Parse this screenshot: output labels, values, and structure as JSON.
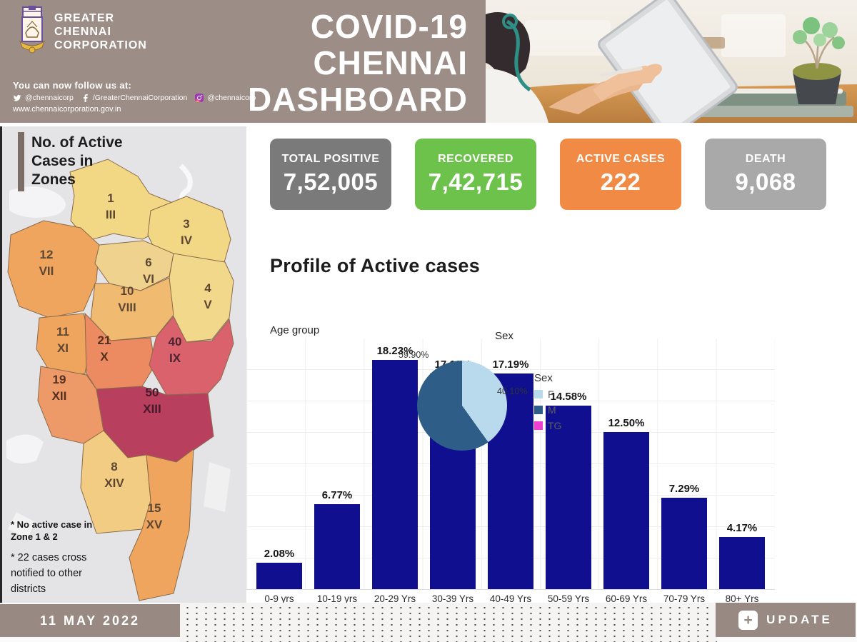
{
  "header": {
    "org_lines": [
      "GREATER",
      "CHENNAI",
      "CORPORATION"
    ],
    "follow_line": "You can now follow us at:",
    "socials": [
      {
        "icon": "twitter-icon",
        "handle": "@chennaicorp"
      },
      {
        "icon": "facebook-icon",
        "handle": "/GreaterChennaiCorporation"
      },
      {
        "icon": "instagram-icon",
        "handle": "@chennaicorp"
      }
    ],
    "website": "www.chennaicorporation.gov.in",
    "title_lines": [
      "COVID-19",
      "CHENNAI",
      "DASHBOARD"
    ]
  },
  "stats": [
    {
      "id": "total-positive",
      "label": "TOTAL POSITIVE",
      "value": "7,52,005",
      "color": "#7a7a7a"
    },
    {
      "id": "recovered",
      "label": "RECOVERED",
      "value": "7,42,715",
      "color": "#6cc24a"
    },
    {
      "id": "active-cases",
      "label": "ACTIVE CASES",
      "value": "222",
      "color": "#f08a44"
    },
    {
      "id": "death",
      "label": "DEATH",
      "value": "9,068",
      "color": "#a9a9a9"
    }
  ],
  "map": {
    "title_lines": [
      "No. of Active",
      "Cases in",
      "Zones"
    ],
    "zones": [
      {
        "id": "III",
        "cases": "1",
        "color": "#f2d784",
        "label_color": "#5d4733"
      },
      {
        "id": "IV",
        "cases": "3",
        "color": "#f2d784",
        "label_color": "#5d4733"
      },
      {
        "id": "VII",
        "cases": "12",
        "color": "#efa55e",
        "label_color": "#5d4733"
      },
      {
        "id": "VI",
        "cases": "6",
        "color": "#eed28d",
        "label_color": "#5d4733"
      },
      {
        "id": "V",
        "cases": "4",
        "color": "#f2d88b",
        "label_color": "#5d4733"
      },
      {
        "id": "VIII",
        "cases": "10",
        "color": "#f0ba70",
        "label_color": "#5d4733"
      },
      {
        "id": "XI",
        "cases": "11",
        "color": "#efa55e",
        "label_color": "#5d4733"
      },
      {
        "id": "X",
        "cases": "21",
        "color": "#ec8a62",
        "label_color": "#53301f"
      },
      {
        "id": "IX",
        "cases": "40",
        "color": "#d9626d",
        "label_color": "#4c2330"
      },
      {
        "id": "XII",
        "cases": "19",
        "color": "#ee9a68",
        "label_color": "#53301f"
      },
      {
        "id": "XIII",
        "cases": "50",
        "color": "#b83f5e",
        "label_color": "#43192b"
      },
      {
        "id": "XIV",
        "cases": "8",
        "color": "#f2cc82",
        "label_color": "#5d4733"
      },
      {
        "id": "XV",
        "cases": "15",
        "color": "#efa55e",
        "label_color": "#5d4733"
      }
    ],
    "notes": {
      "note1_lines": [
        "* No active case in",
        "Zone 1 & 2"
      ],
      "note2_lines": [
        "* 22  cases cross",
        "notified to other",
        "districts"
      ]
    }
  },
  "profile": {
    "heading": "Profile of Active cases"
  },
  "chart_data": [
    {
      "type": "bar",
      "title": "Age group",
      "categories": [
        "0-9 yrs",
        "10-19 yrs",
        "20-29 Yrs",
        "30-39 Yrs",
        "40-49 Yrs",
        "50-59 Yrs",
        "60-69 Yrs",
        "70-79 Yrs",
        "80+ Yrs"
      ],
      "values": [
        2.08,
        6.77,
        18.23,
        17.19,
        17.19,
        14.58,
        12.5,
        7.29,
        4.17
      ],
      "labels": [
        "2.08%",
        "6.77%",
        "18.23%",
        "17.19%",
        "17.19%",
        "14.58%",
        "12.50%",
        "7.29%",
        "4.17%"
      ],
      "xlabel": "",
      "ylabel": "",
      "ylim": [
        0,
        20
      ],
      "gridline_interval": 2.5,
      "grid": true,
      "bar_color": "#0f0f90",
      "legend_position": "none"
    },
    {
      "type": "pie",
      "title": "Sex",
      "legend_title": "Sex",
      "labels": [
        "F",
        "M",
        "TG"
      ],
      "values": [
        40.1,
        59.9,
        0
      ],
      "display_labels": {
        "M": "59.90%",
        "F": "40.10%"
      },
      "colors": [
        "#b9d9ec",
        "#2e5e88",
        "#ee3fd2"
      ],
      "legend_position": "right"
    }
  ],
  "footer": {
    "date": "11 MAY 2022",
    "update_label": "UPDATE"
  }
}
